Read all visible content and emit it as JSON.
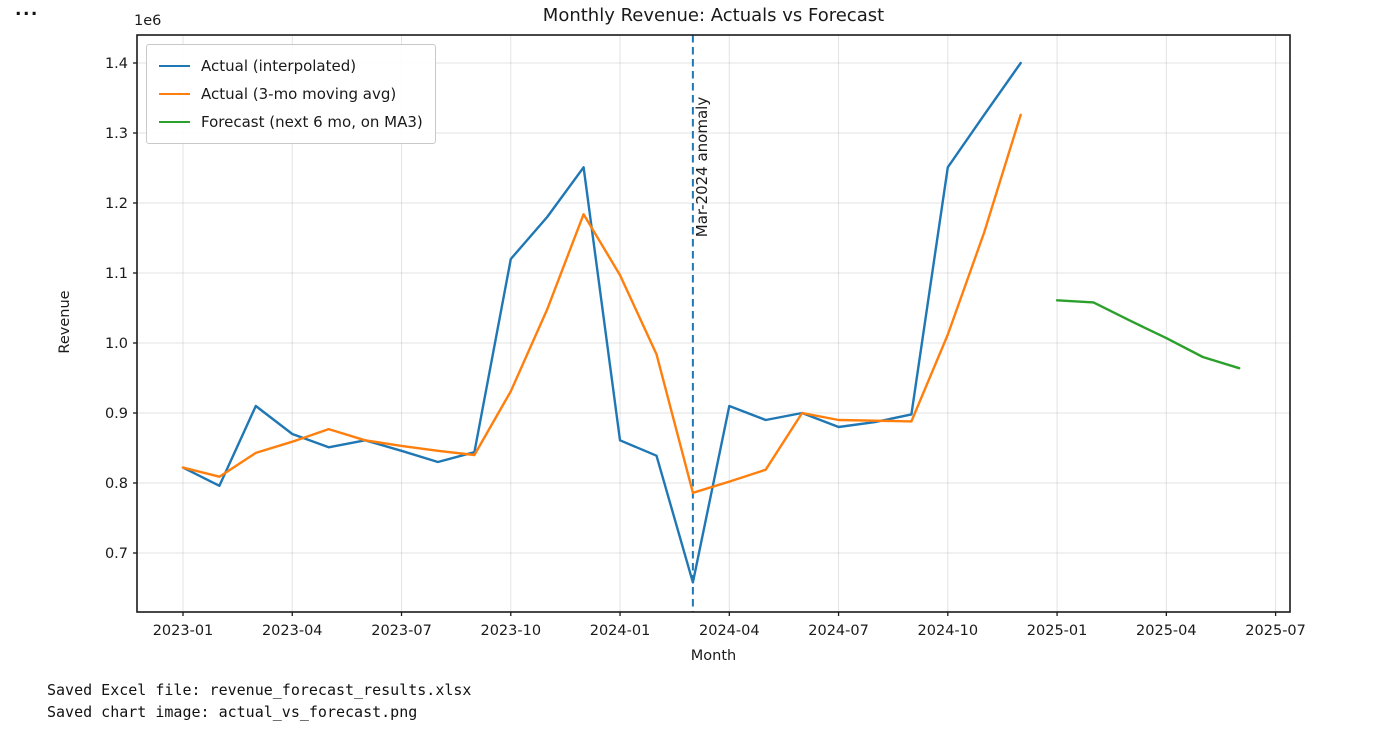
{
  "window": {
    "collapsed_output_indicator": "..."
  },
  "chart_data": {
    "type": "line",
    "title": "Monthly Revenue: Actuals vs Forecast",
    "xlabel": "Month",
    "ylabel": "Revenue",
    "y_scale_offset_label": "1e6",
    "y_unit_multiplier": 1000000,
    "grid": true,
    "legend_position": "upper left",
    "ylim": [
      0.62,
      1.44
    ],
    "x": [
      "2023-01",
      "2023-02",
      "2023-03",
      "2023-04",
      "2023-05",
      "2023-06",
      "2023-07",
      "2023-08",
      "2023-09",
      "2023-10",
      "2023-11",
      "2023-12",
      "2024-01",
      "2024-02",
      "2024-03",
      "2024-04",
      "2024-05",
      "2024-06",
      "2024-07",
      "2024-08",
      "2024-09",
      "2024-10",
      "2024-11",
      "2024-12",
      "2025-01",
      "2025-02",
      "2025-03",
      "2025-04",
      "2025-05",
      "2025-06",
      "2025-07"
    ],
    "x_tick_labels": [
      "2023-01",
      "2023-04",
      "2023-07",
      "2023-10",
      "2024-01",
      "2024-04",
      "2024-07",
      "2024-10",
      "2025-01",
      "2025-04",
      "2025-07"
    ],
    "y_tick_labels": [
      "0.7",
      "0.8",
      "0.9",
      "1.0",
      "1.1",
      "1.2",
      "1.3",
      "1.4"
    ],
    "series": [
      {
        "name": "Actual (interpolated)",
        "color": "#1f77b4",
        "linestyle": "solid",
        "start_month": "2023-01",
        "values": [
          0.822,
          0.796,
          0.91,
          0.87,
          0.851,
          0.861,
          0.846,
          0.83,
          0.844,
          1.12,
          1.18,
          1.251,
          0.861,
          0.839,
          0.658,
          0.91,
          0.89,
          0.9,
          0.88,
          0.887,
          0.898,
          1.251,
          1.326,
          1.4
        ]
      },
      {
        "name": "Actual (3-mo moving avg)",
        "color": "#ff7f0e",
        "linestyle": "solid",
        "start_month": "2023-01",
        "values": [
          0.822,
          0.809,
          0.843,
          0.859,
          0.877,
          0.861,
          0.853,
          0.846,
          0.84,
          0.931,
          1.048,
          1.184,
          1.097,
          0.984,
          0.786,
          0.802,
          0.819,
          0.9,
          0.89,
          0.889,
          0.888,
          1.012,
          1.158,
          1.326
        ]
      },
      {
        "name": "Forecast (next 6 mo, on MA3)",
        "color": "#2ca02c",
        "linestyle": "solid",
        "start_month": "2025-01",
        "values": [
          1.061,
          1.058,
          1.032,
          1.007,
          0.98,
          0.964
        ]
      }
    ],
    "annotation": {
      "label": "Mar-2024 anomaly",
      "x": "2024-03",
      "color": "#1f77b4",
      "linestyle": "dashed"
    }
  },
  "console_output": {
    "line1": "Saved Excel file: revenue_forecast_results.xlsx",
    "line2": "Saved chart image: actual_vs_forecast.png"
  }
}
